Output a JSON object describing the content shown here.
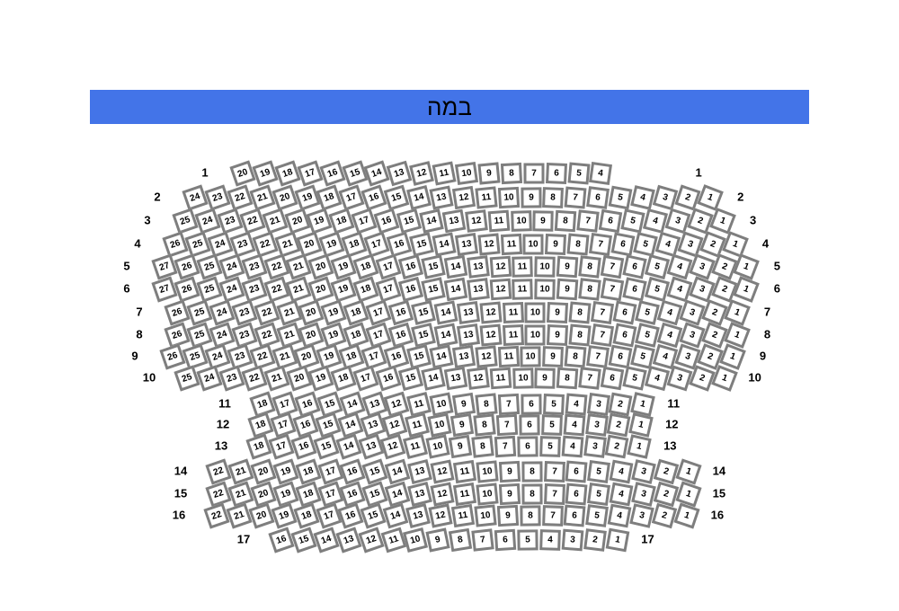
{
  "stage": {
    "title": "במה"
  },
  "colors": {
    "banner_bg": "#4374e8",
    "title_color": "#000000",
    "seat_fill": "#ffffff",
    "seat_border": "#7e7e7e",
    "seat_number": "#000000",
    "row_label": "#000000"
  },
  "rows": [
    {
      "label": "1",
      "seats": [
        20,
        19,
        18,
        17,
        16,
        15,
        14,
        13,
        12,
        11,
        10,
        9,
        8,
        7,
        6,
        5,
        4
      ]
    },
    {
      "label": "2",
      "seats": [
        24,
        23,
        22,
        21,
        20,
        19,
        18,
        17,
        16,
        15,
        14,
        13,
        12,
        11,
        10,
        9,
        8,
        7,
        6,
        5,
        4,
        3,
        2,
        1
      ]
    },
    {
      "label": "3",
      "seats": [
        25,
        24,
        23,
        22,
        21,
        20,
        19,
        18,
        17,
        16,
        15,
        14,
        13,
        12,
        11,
        10,
        9,
        8,
        7,
        6,
        5,
        4,
        3,
        2,
        1
      ]
    },
    {
      "label": "4",
      "seats": [
        26,
        25,
        24,
        23,
        22,
        21,
        20,
        19,
        18,
        17,
        16,
        15,
        14,
        13,
        12,
        11,
        10,
        9,
        8,
        7,
        6,
        5,
        4,
        3,
        2,
        1
      ]
    },
    {
      "label": "5",
      "seats": [
        27,
        26,
        25,
        24,
        23,
        22,
        21,
        20,
        19,
        18,
        17,
        16,
        15,
        14,
        13,
        12,
        11,
        10,
        9,
        8,
        7,
        6,
        5,
        4,
        3,
        2,
        1
      ]
    },
    {
      "label": "6",
      "seats": [
        27,
        26,
        25,
        24,
        23,
        22,
        21,
        20,
        19,
        18,
        17,
        16,
        15,
        14,
        13,
        12,
        11,
        10,
        9,
        8,
        7,
        6,
        5,
        4,
        3,
        2,
        1
      ]
    },
    {
      "label": "7",
      "seats": [
        26,
        25,
        24,
        23,
        22,
        21,
        20,
        19,
        18,
        17,
        16,
        15,
        14,
        13,
        12,
        11,
        10,
        9,
        8,
        7,
        6,
        5,
        4,
        3,
        2,
        1
      ]
    },
    {
      "label": "8",
      "seats": [
        26,
        25,
        24,
        23,
        22,
        21,
        20,
        19,
        18,
        17,
        16,
        15,
        14,
        13,
        12,
        11,
        10,
        9,
        8,
        7,
        6,
        5,
        4,
        3,
        2,
        1
      ]
    },
    {
      "label": "9",
      "seats": [
        26,
        25,
        24,
        23,
        22,
        21,
        20,
        19,
        18,
        17,
        16,
        15,
        14,
        13,
        12,
        11,
        10,
        9,
        8,
        7,
        6,
        5,
        4,
        3,
        2,
        1
      ]
    },
    {
      "label": "10",
      "seats": [
        25,
        24,
        23,
        22,
        21,
        20,
        19,
        18,
        17,
        16,
        15,
        14,
        13,
        12,
        11,
        10,
        9,
        8,
        7,
        6,
        5,
        4,
        3,
        2,
        1
      ]
    },
    {
      "label": "11",
      "seats": [
        18,
        17,
        16,
        15,
        14,
        13,
        12,
        11,
        10,
        9,
        8,
        7,
        6,
        5,
        4,
        3,
        2,
        1
      ]
    },
    {
      "label": "12",
      "seats": [
        18,
        17,
        16,
        15,
        14,
        13,
        12,
        11,
        10,
        9,
        8,
        7,
        6,
        5,
        4,
        3,
        2,
        1
      ]
    },
    {
      "label": "13",
      "seats": [
        18,
        17,
        16,
        15,
        14,
        13,
        12,
        11,
        10,
        9,
        8,
        7,
        6,
        5,
        4,
        3,
        2,
        1
      ]
    },
    {
      "label": "14",
      "seats": [
        22,
        21,
        20,
        19,
        18,
        17,
        16,
        15,
        14,
        13,
        12,
        11,
        10,
        9,
        8,
        7,
        6,
        5,
        4,
        3,
        2,
        1
      ]
    },
    {
      "label": "15",
      "seats": [
        22,
        21,
        20,
        19,
        18,
        17,
        16,
        15,
        14,
        13,
        12,
        11,
        10,
        9,
        8,
        7,
        6,
        5,
        4,
        3,
        2,
        1
      ]
    },
    {
      "label": "16",
      "seats": [
        22,
        21,
        20,
        19,
        18,
        17,
        16,
        15,
        14,
        13,
        12,
        11,
        10,
        9,
        8,
        7,
        6,
        5,
        4,
        3,
        2,
        1
      ]
    },
    {
      "label": "17",
      "seats": [
        16,
        15,
        14,
        13,
        12,
        11,
        10,
        9,
        8,
        7,
        6,
        5,
        4,
        3,
        2,
        1
      ]
    }
  ]
}
